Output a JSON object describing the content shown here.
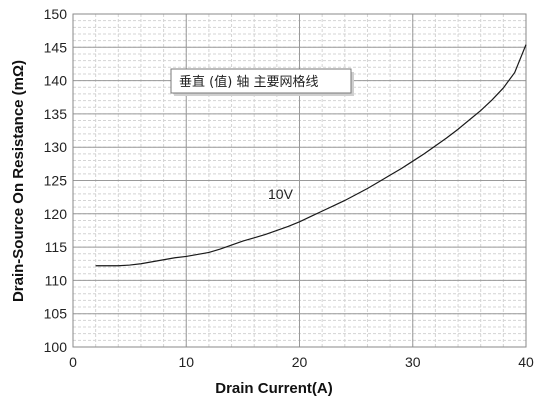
{
  "chart_data": {
    "type": "line",
    "title": "",
    "xlabel": "Drain Current(A)",
    "ylabel": "Drain-Source On Resistance (mΩ)",
    "xlim": [
      0,
      40
    ],
    "ylim": [
      100,
      150
    ],
    "x_ticks": [
      0,
      10,
      20,
      30,
      40
    ],
    "y_ticks": [
      100,
      105,
      110,
      115,
      120,
      125,
      130,
      135,
      140,
      145,
      150
    ],
    "x_minor_step": 2,
    "y_minor_step": 1,
    "grid": true,
    "series": [
      {
        "name": "10V",
        "color": "#1a1a1a",
        "x": [
          2,
          3,
          4,
          5,
          6,
          7,
          8,
          9,
          10,
          11,
          12,
          13,
          14,
          15,
          16,
          17,
          18,
          19,
          20,
          21,
          22,
          23,
          24,
          25,
          26,
          27,
          28,
          29,
          30,
          31,
          32,
          33,
          34,
          35,
          36,
          37,
          38,
          39,
          40
        ],
        "y": [
          112.2,
          112.2,
          112.2,
          112.3,
          112.5,
          112.8,
          113.1,
          113.4,
          113.6,
          113.9,
          114.2,
          114.7,
          115.3,
          115.9,
          116.4,
          116.9,
          117.5,
          118.1,
          118.8,
          119.6,
          120.4,
          121.2,
          122.0,
          122.9,
          123.8,
          124.8,
          125.8,
          126.8,
          127.9,
          129.0,
          130.2,
          131.4,
          132.7,
          134.1,
          135.5,
          137.1,
          138.9,
          141.2,
          145.4
        ]
      }
    ],
    "series_label": "10V",
    "tooltip": "垂直 (值) 轴 主要网格线"
  }
}
